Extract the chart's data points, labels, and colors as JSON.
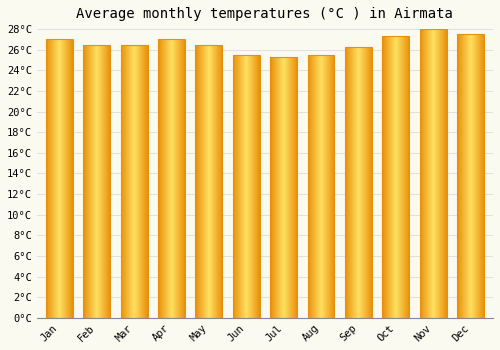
{
  "title": "Average monthly temperatures (°C ) in Airmata",
  "months": [
    "Jan",
    "Feb",
    "Mar",
    "Apr",
    "May",
    "Jun",
    "Jul",
    "Aug",
    "Sep",
    "Oct",
    "Nov",
    "Dec"
  ],
  "values": [
    27.0,
    26.5,
    26.5,
    27.0,
    26.5,
    25.5,
    25.3,
    25.5,
    26.3,
    27.3,
    28.0,
    27.5
  ],
  "bar_color_center": "#FFE97A",
  "bar_color_edge": "#E8900A",
  "ylim": [
    0,
    28
  ],
  "ytick_step": 2,
  "background_color": "#FAFAF0",
  "grid_color": "#E0E0E0",
  "title_fontsize": 10,
  "tick_fontsize": 7.5,
  "font_family": "monospace"
}
